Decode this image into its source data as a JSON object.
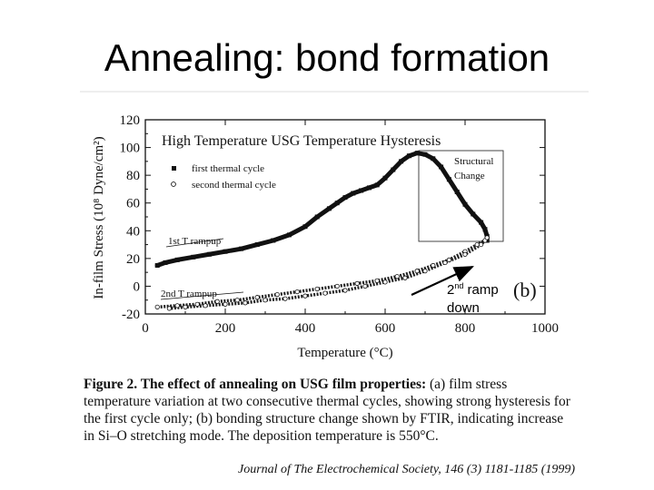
{
  "slide": {
    "title": "Annealing: bond formation"
  },
  "chart_data": {
    "type": "scatter",
    "title": "High Temperature USG Temperature Hysteresis",
    "xlabel": "Temperature (°C)",
    "ylabel": "In-film Stress (10⁸ Dyne/cm²)",
    "xlim": [
      0,
      1000
    ],
    "ylim": [
      -20,
      120
    ],
    "x_ticks": [
      "0",
      "200",
      "400",
      "600",
      "800",
      "1000"
    ],
    "y_ticks": [
      "-20",
      "0",
      "20",
      "40",
      "60",
      "80",
      "100",
      "120"
    ],
    "panel_label": "(b)",
    "legend": {
      "position": "top-left",
      "entries": [
        {
          "marker": "filled-square",
          "label": "first thermal cycle"
        },
        {
          "marker": "open-circle",
          "label": "second thermal cycle"
        }
      ]
    },
    "annotations": {
      "structural_change_line1": "Structural",
      "structural_change_line2": "Change",
      "first_rampup": "1st T rampup",
      "second_rampup": "2nd T rampup"
    },
    "series": [
      {
        "name": "first thermal cycle",
        "points": [
          [
            30,
            15
          ],
          [
            50,
            17
          ],
          [
            80,
            19
          ],
          [
            120,
            21
          ],
          [
            160,
            23
          ],
          [
            200,
            25
          ],
          [
            240,
            27
          ],
          [
            280,
            30
          ],
          [
            320,
            33
          ],
          [
            360,
            37
          ],
          [
            400,
            43
          ],
          [
            430,
            50
          ],
          [
            460,
            56
          ],
          [
            480,
            60
          ],
          [
            500,
            64
          ],
          [
            520,
            67
          ],
          [
            540,
            69
          ],
          [
            560,
            71
          ],
          [
            580,
            73
          ],
          [
            600,
            78
          ],
          [
            620,
            84
          ],
          [
            640,
            90
          ],
          [
            660,
            94
          ],
          [
            680,
            96
          ],
          [
            700,
            95
          ],
          [
            720,
            92
          ],
          [
            740,
            86
          ],
          [
            760,
            77
          ],
          [
            780,
            68
          ],
          [
            800,
            59
          ],
          [
            820,
            52
          ],
          [
            840,
            46
          ],
          [
            850,
            41
          ],
          [
            855,
            36
          ],
          [
            855,
            33
          ]
        ]
      },
      {
        "name": "second thermal cycle",
        "points": [
          [
            30,
            -15
          ],
          [
            80,
            -14
          ],
          [
            130,
            -13
          ],
          [
            180,
            -11
          ],
          [
            230,
            -10
          ],
          [
            280,
            -8
          ],
          [
            330,
            -6
          ],
          [
            380,
            -4
          ],
          [
            430,
            -2
          ],
          [
            480,
            0
          ],
          [
            530,
            2
          ],
          [
            580,
            4
          ],
          [
            630,
            7
          ],
          [
            680,
            11
          ],
          [
            720,
            15
          ],
          [
            760,
            19
          ],
          [
            800,
            25
          ],
          [
            830,
            30
          ],
          [
            850,
            33
          ],
          [
            855,
            35
          ],
          [
            840,
            30
          ],
          [
            800,
            23
          ],
          [
            750,
            17
          ],
          [
            700,
            11
          ],
          [
            650,
            6
          ],
          [
            600,
            3
          ],
          [
            550,
            0
          ],
          [
            500,
            -3
          ],
          [
            450,
            -5
          ],
          [
            400,
            -7
          ],
          [
            350,
            -9
          ],
          [
            300,
            -10
          ],
          [
            250,
            -12
          ],
          [
            200,
            -13
          ],
          [
            150,
            -14
          ],
          [
            100,
            -15
          ],
          [
            60,
            -16
          ]
        ]
      }
    ]
  },
  "slide_annotation": {
    "ordinal": "2",
    "ordinal_suffix": "nd",
    "line1_rest": " ramp",
    "line2": "down"
  },
  "caption": {
    "figure_label": "Figure 2.",
    "bold_text": " The effect of annealing on USG film properties:",
    "text": " (a) film stress temperature variation at two consecutive thermal cycles, showing strong hysteresis for the first cycle only; (b) bonding structure change shown by FTIR, indicating increase in Si–O stretching mode. The deposition temperature is 550°C."
  },
  "journal": {
    "citation": "Journal of The Electrochemical Society, 146 (3) 1181-1185 (1999)"
  }
}
